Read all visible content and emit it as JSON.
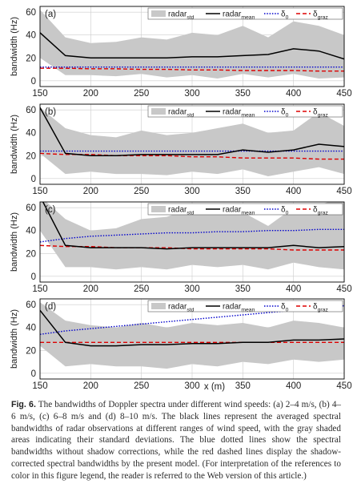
{
  "legend": {
    "std": {
      "base": "radar",
      "sub": "std"
    },
    "mean": {
      "base": "radar",
      "sub": "mean"
    },
    "delta0": {
      "base": "δ",
      "sub": "0"
    },
    "deltag": {
      "base": "δ",
      "sub": "graz"
    }
  },
  "colors": {
    "band": "#c8c8c8",
    "mean": "#000000",
    "delta0": "#0000cc",
    "deltag": "#dd0000",
    "grid": "#cccccc"
  },
  "chart_data": [
    {
      "type": "area",
      "panel_label": "(a)",
      "ylabel": "bandwidth (Hz)",
      "xlim": [
        150,
        450
      ],
      "ylim": [
        -5,
        65
      ],
      "xticks": [
        150,
        200,
        250,
        300,
        350,
        400,
        450
      ],
      "yticks": [
        0,
        20,
        40,
        60
      ],
      "grid": true,
      "legend_position": "top",
      "x": [
        150,
        175,
        200,
        225,
        250,
        275,
        300,
        325,
        350,
        375,
        400,
        425,
        450
      ],
      "series": [
        {
          "name": "radar_std_upper",
          "values": [
            62,
            38,
            33,
            34,
            38,
            36,
            42,
            40,
            48,
            38,
            52,
            48,
            40
          ]
        },
        {
          "name": "radar_std_lower",
          "values": [
            20,
            5,
            5,
            4,
            6,
            3,
            5,
            2,
            6,
            3,
            6,
            2,
            3
          ]
        },
        {
          "name": "radar_mean",
          "values": [
            42,
            22,
            20,
            20,
            20,
            20,
            21,
            21,
            22,
            23,
            28,
            26,
            19
          ]
        },
        {
          "name": "delta_0",
          "values": [
            12,
            12,
            12,
            12,
            12,
            12,
            12,
            12,
            12,
            12,
            12,
            12,
            12
          ]
        },
        {
          "name": "delta_graz",
          "values": [
            11,
            11,
            10.5,
            10.5,
            10,
            10,
            9.5,
            9.5,
            9,
            9,
            9,
            8.5,
            8.5
          ]
        }
      ]
    },
    {
      "type": "area",
      "panel_label": "(b)",
      "ylabel": "bandwidth (Hz)",
      "xlim": [
        150,
        450
      ],
      "ylim": [
        -5,
        65
      ],
      "xticks": [
        150,
        200,
        250,
        300,
        350,
        400,
        450
      ],
      "yticks": [
        0,
        20,
        40,
        60
      ],
      "grid": true,
      "legend_position": "top",
      "x": [
        150,
        175,
        200,
        225,
        250,
        275,
        300,
        325,
        350,
        375,
        400,
        425,
        450
      ],
      "series": [
        {
          "name": "radar_std_upper",
          "values": [
            62,
            44,
            38,
            36,
            42,
            38,
            40,
            44,
            48,
            40,
            42,
            58,
            46
          ]
        },
        {
          "name": "radar_std_lower",
          "values": [
            22,
            4,
            6,
            4,
            4,
            3,
            6,
            4,
            8,
            2,
            6,
            10,
            4
          ]
        },
        {
          "name": "radar_mean",
          "values": [
            62,
            22,
            20,
            20,
            21,
            21,
            21,
            21,
            25,
            23,
            25,
            30,
            28
          ]
        },
        {
          "name": "delta_0",
          "values": [
            24,
            24,
            24,
            24,
            24,
            24,
            24,
            24,
            24,
            24,
            24,
            24,
            24
          ]
        },
        {
          "name": "delta_graz",
          "values": [
            22,
            21,
            21,
            20,
            20,
            20,
            19,
            19,
            18,
            18,
            18,
            17,
            17
          ]
        }
      ]
    },
    {
      "type": "area",
      "panel_label": "(c)",
      "ylabel": "bandwidth (Hz)",
      "xlim": [
        150,
        450
      ],
      "ylim": [
        -5,
        65
      ],
      "xticks": [
        150,
        200,
        250,
        300,
        350,
        400,
        450
      ],
      "yticks": [
        0,
        20,
        40,
        60
      ],
      "grid": true,
      "legend_position": "top",
      "x": [
        150,
        175,
        200,
        225,
        250,
        275,
        300,
        325,
        350,
        375,
        400,
        425,
        450
      ],
      "series": [
        {
          "name": "radar_std_upper",
          "values": [
            70,
            50,
            40,
            42,
            50,
            52,
            60,
            54,
            56,
            44,
            60,
            62,
            70
          ]
        },
        {
          "name": "radar_std_lower",
          "values": [
            40,
            8,
            8,
            6,
            8,
            6,
            10,
            8,
            10,
            6,
            12,
            8,
            6
          ]
        },
        {
          "name": "radar_mean",
          "values": [
            70,
            27,
            25,
            25,
            25,
            24,
            25,
            25,
            25,
            25,
            27,
            25,
            26
          ]
        },
        {
          "name": "delta_0",
          "values": [
            30,
            33,
            35,
            36,
            37,
            38,
            38,
            39,
            39,
            40,
            40,
            41,
            41
          ]
        },
        {
          "name": "delta_graz",
          "values": [
            27,
            26,
            26,
            25,
            25,
            25,
            24,
            24,
            24,
            24,
            23,
            23,
            23
          ]
        }
      ]
    },
    {
      "type": "area",
      "panel_label": "(d)",
      "ylabel": "bandwidth (Hz)",
      "xlabel": "x (m)",
      "xlim": [
        150,
        450
      ],
      "ylim": [
        -5,
        65
      ],
      "xticks": [
        150,
        200,
        250,
        300,
        350,
        400,
        450
      ],
      "yticks": [
        0,
        20,
        40,
        60
      ],
      "grid": true,
      "legend_position": "top",
      "x": [
        150,
        175,
        200,
        225,
        250,
        275,
        300,
        325,
        350,
        375,
        400,
        425,
        450
      ],
      "series": [
        {
          "name": "radar_std_upper",
          "values": [
            62,
            46,
            42,
            40,
            44,
            40,
            44,
            42,
            44,
            40,
            46,
            44,
            40
          ]
        },
        {
          "name": "radar_std_lower",
          "values": [
            24,
            6,
            8,
            6,
            6,
            4,
            8,
            6,
            10,
            8,
            12,
            10,
            12
          ]
        },
        {
          "name": "radar_mean",
          "values": [
            55,
            27,
            24,
            24,
            25,
            25,
            26,
            26,
            27,
            27,
            29,
            29,
            30
          ]
        },
        {
          "name": "delta_0",
          "values": [
            34,
            37,
            39,
            41,
            43,
            45,
            47,
            49,
            51,
            53,
            55,
            57,
            59
          ]
        },
        {
          "name": "delta_graz",
          "values": [
            27,
            27,
            27,
            27,
            27,
            27,
            27,
            27,
            27,
            27,
            27,
            27,
            27
          ]
        }
      ]
    }
  ],
  "caption": {
    "label": "Fig. 6.",
    "text": " The bandwidths of Doppler spectra under different wind speeds: (a) 2–4 m/s, (b) 4–6 m/s, (c) 6–8 m/s and (d) 8–10 m/s. The black lines represent the averaged spectral bandwidths of radar observations at different ranges of wind speed, with the gray shaded areas indicating their standard deviations. The blue dotted lines show the spectral bandwidths without shadow corrections, while the red dashed lines display the shadow-corrected spectral bandwidths by the present model. (For interpretation of the references to color in this figure legend, the reader is referred to the Web version of this article.)"
  }
}
